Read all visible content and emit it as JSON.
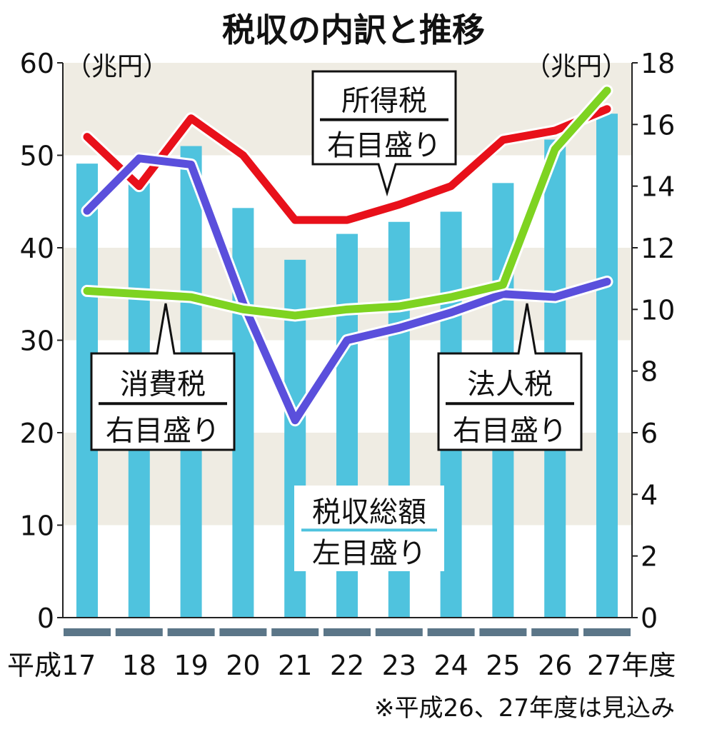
{
  "chart_data": {
    "type": "bar+line",
    "title": "税収の内訳と推移",
    "left_unit": "（兆円）",
    "right_unit": "（兆円）",
    "left_ylim": [
      0,
      60
    ],
    "right_ylim": [
      0,
      18
    ],
    "left_ticks": [
      "0",
      "10",
      "20",
      "30",
      "40",
      "50",
      "60"
    ],
    "right_ticks": [
      "0",
      "2",
      "4",
      "6",
      "8",
      "10",
      "12",
      "14",
      "16",
      "18"
    ],
    "categories": [
      "平成17",
      "18",
      "19",
      "20",
      "21",
      "22",
      "23",
      "24",
      "25",
      "26",
      "27年度"
    ],
    "bars": {
      "name": "税収総額",
      "axis": "left",
      "sub": "左目盛り",
      "color": "#4fc3de",
      "values": [
        49.1,
        47.0,
        51.0,
        44.3,
        38.7,
        41.5,
        42.8,
        43.9,
        47.0,
        51.7,
        54.5
      ]
    },
    "series": [
      {
        "name": "所得税",
        "axis": "right",
        "sub": "右目盛り",
        "color": "#e8101a",
        "values": [
          15.6,
          14.0,
          16.2,
          15.0,
          12.9,
          12.9,
          13.4,
          14.0,
          15.5,
          15.8,
          16.5
        ]
      },
      {
        "name": "法人税",
        "axis": "right",
        "sub": "右目盛り",
        "color": "#5a4fdc",
        "values": [
          13.2,
          14.9,
          14.7,
          10.2,
          6.4,
          9.0,
          9.4,
          9.9,
          10.5,
          10.4,
          10.9
        ]
      },
      {
        "name": "消費税",
        "axis": "right",
        "sub": "右目盛り",
        "color": "#7ed321",
        "values": [
          10.6,
          10.5,
          10.4,
          10.0,
          9.8,
          10.0,
          10.1,
          10.4,
          10.8,
          15.2,
          17.1
        ]
      }
    ],
    "note": "※平成26、27年度は見込み"
  }
}
